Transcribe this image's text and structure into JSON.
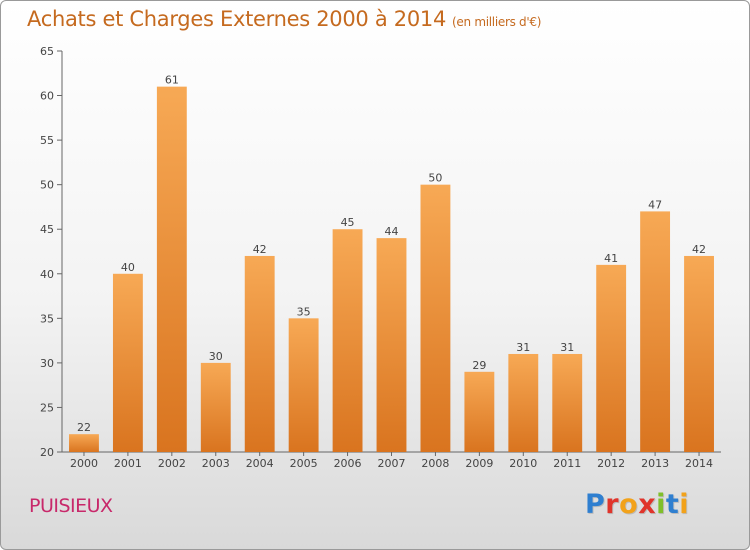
{
  "header": {
    "title": "Achats et Charges Externes 2000 à 2014",
    "subtitle": "(en milliers d'€)"
  },
  "footer": {
    "place": "PUISIEUX",
    "brand": "Proxiti",
    "brand_letters": [
      {
        "ch": "P",
        "color": "#2f7fd0"
      },
      {
        "ch": "r",
        "color": "#e0342b"
      },
      {
        "ch": "o",
        "color": "#f2a21a"
      },
      {
        "ch": "x",
        "color": "#e0342b"
      },
      {
        "ch": "i",
        "color": "#7fbf2a"
      },
      {
        "ch": "t",
        "color": "#2f7fd0"
      },
      {
        "ch": "i",
        "color": "#f2a21a"
      }
    ]
  },
  "chart_data": {
    "type": "bar",
    "title": "Achats et Charges Externes 2000 à 2014",
    "subtitle": "(en milliers d'€)",
    "categories": [
      "2000",
      "2001",
      "2002",
      "2003",
      "2004",
      "2005",
      "2006",
      "2007",
      "2008",
      "2009",
      "2010",
      "2011",
      "2012",
      "2013",
      "2014"
    ],
    "values": [
      22,
      40,
      61,
      30,
      42,
      35,
      45,
      44,
      50,
      29,
      31,
      31,
      41,
      47,
      42
    ],
    "ylim": [
      20,
      65
    ],
    "yticks": [
      20,
      25,
      30,
      35,
      40,
      45,
      50,
      55,
      60,
      65
    ],
    "grid": false,
    "data_labels": true,
    "bar_color": "#f0943a"
  }
}
